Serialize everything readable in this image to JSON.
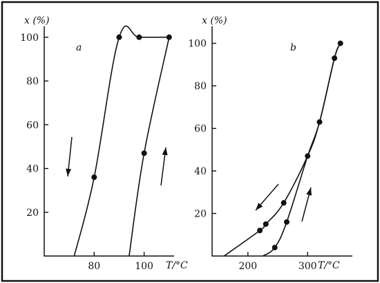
{
  "chart_data": [
    {
      "type": "line",
      "panel_label": "a",
      "ylabel": "x (%)",
      "xlabel": "T/°C",
      "x_ticks": [
        80,
        100
      ],
      "y_ticks": [
        20,
        40,
        60,
        80,
        100
      ],
      "xlim": [
        60,
        112
      ],
      "ylim": [
        0,
        105
      ],
      "series": [
        {
          "direction": "cooling",
          "arrow": "down",
          "x": [
            72,
            80,
            90,
            98,
            110
          ],
          "y": [
            0,
            36,
            100,
            100,
            100
          ]
        },
        {
          "direction": "heating",
          "arrow": "up",
          "x": [
            94,
            100,
            110
          ],
          "y": [
            0,
            47,
            100
          ]
        }
      ],
      "markers": [
        [
          80,
          36
        ],
        [
          90,
          100
        ],
        [
          98,
          100
        ],
        [
          100,
          47
        ],
        [
          110,
          100
        ]
      ]
    },
    {
      "type": "line",
      "panel_label": "b",
      "ylabel": "x (%)",
      "xlabel": "T/°C",
      "x_ticks": [
        200,
        300
      ],
      "y_ticks": [
        20,
        40,
        60,
        80,
        100
      ],
      "xlim": [
        140,
        375
      ],
      "ylim": [
        0,
        108
      ],
      "series": [
        {
          "direction": "cooling",
          "arrow": "down-left",
          "x": [
            160,
            220,
            230,
            260,
            300,
            320,
            345,
            355
          ],
          "y": [
            0,
            12,
            15,
            25,
            47,
            63,
            93,
            100
          ]
        },
        {
          "direction": "heating",
          "arrow": "up-right",
          "x": [
            225,
            245,
            265,
            300,
            320,
            345,
            355
          ],
          "y": [
            0,
            4,
            16,
            47,
            63,
            93,
            100
          ]
        }
      ],
      "markers": [
        [
          220,
          12
        ],
        [
          230,
          15
        ],
        [
          260,
          25
        ],
        [
          245,
          4
        ],
        [
          265,
          16
        ],
        [
          300,
          47
        ],
        [
          320,
          63
        ],
        [
          345,
          93
        ],
        [
          355,
          100
        ]
      ]
    }
  ]
}
